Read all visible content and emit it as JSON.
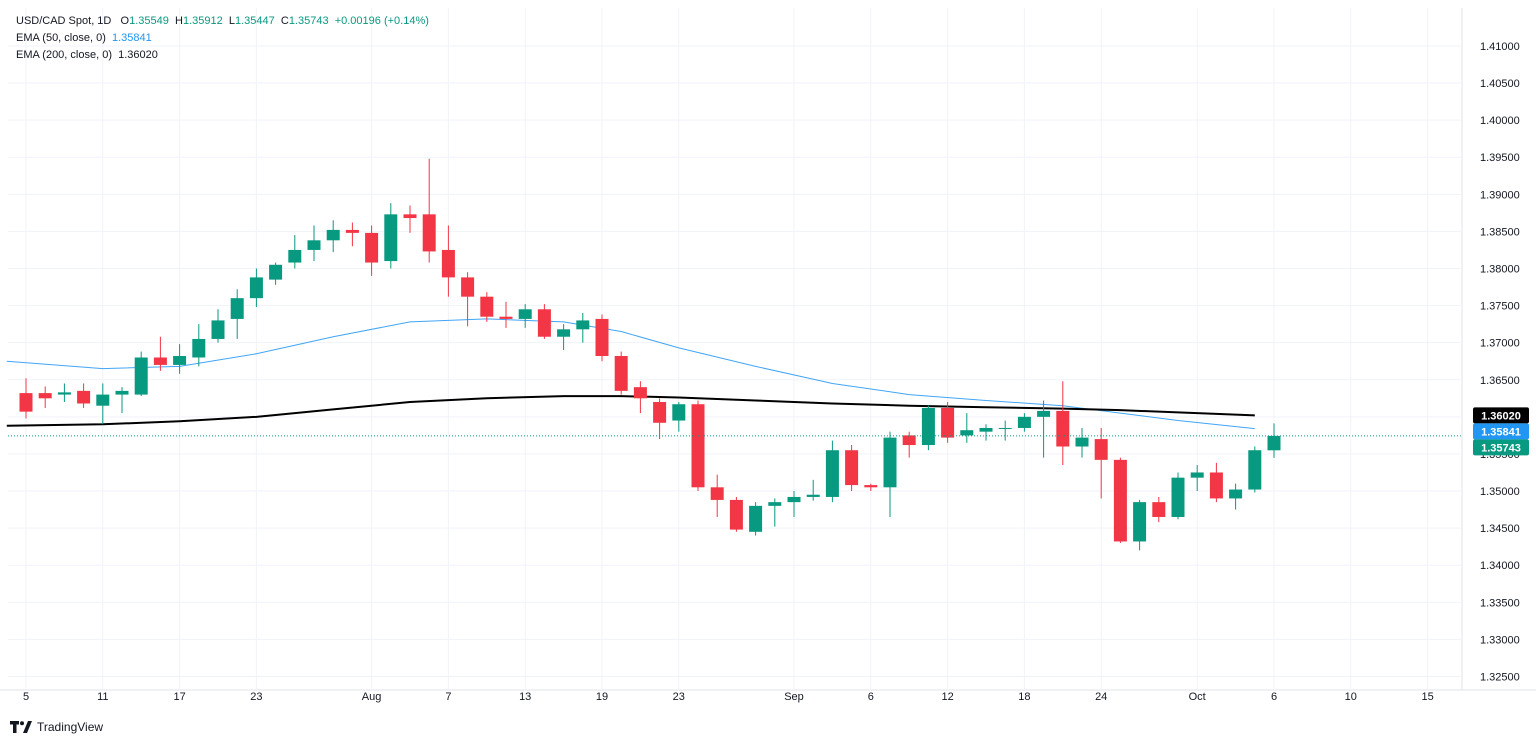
{
  "header": {
    "symbol": "USD/CAD Spot, 1D",
    "open_label": "O",
    "open": "1.35549",
    "high_label": "H",
    "high": "1.35912",
    "low_label": "L",
    "low": "1.35447",
    "close_label": "C",
    "close": "1.35743",
    "change": "+0.00196 (+0.14%)",
    "ema50_label": "EMA (50, close, 0)",
    "ema50_value": "1.35841",
    "ema200_label": "EMA (200, close, 0)",
    "ema200_value": "1.36020"
  },
  "brand": {
    "name": "TradingView"
  },
  "colors": {
    "up": "#089981",
    "down": "#f23645",
    "ema50": "#42a5f5",
    "ema200": "#000000",
    "grid": "#f0f3fa",
    "axis_text": "#131722",
    "close_line": "#089981"
  },
  "chart_data": {
    "type": "candlestick",
    "title": "USD/CAD Spot, 1D",
    "ylim": [
      1.3225,
      1.4135
    ],
    "y_ticks": [
      "1.32500",
      "1.33000",
      "1.33500",
      "1.34000",
      "1.34500",
      "1.35000",
      "1.35500",
      "1.36000",
      "1.36500",
      "1.37000",
      "1.37500",
      "1.38000",
      "1.38500",
      "1.39000",
      "1.39500",
      "1.40000",
      "1.40500",
      "1.41000"
    ],
    "x_ticks": [
      {
        "index": 0,
        "label": "5"
      },
      {
        "index": 4,
        "label": "11"
      },
      {
        "index": 8,
        "label": "17"
      },
      {
        "index": 12,
        "label": "23"
      },
      {
        "index": 18,
        "label": "Aug"
      },
      {
        "index": 22,
        "label": "7"
      },
      {
        "index": 26,
        "label": "13"
      },
      {
        "index": 30,
        "label": "19"
      },
      {
        "index": 34,
        "label": "23"
      },
      {
        "index": 40,
        "label": "Sep"
      },
      {
        "index": 44,
        "label": "6"
      },
      {
        "index": 48,
        "label": "12"
      },
      {
        "index": 52,
        "label": "18"
      },
      {
        "index": 56,
        "label": "24"
      },
      {
        "index": 61,
        "label": "Oct"
      },
      {
        "index": 65,
        "label": "6"
      },
      {
        "index": 69,
        "label": "10"
      },
      {
        "index": 73,
        "label": "15"
      }
    ],
    "candles": [
      {
        "o": 1.3632,
        "h": 1.3652,
        "l": 1.3598,
        "c": 1.3607
      },
      {
        "o": 1.3632,
        "h": 1.3641,
        "l": 1.3612,
        "c": 1.3625
      },
      {
        "o": 1.363,
        "h": 1.3645,
        "l": 1.362,
        "c": 1.3633
      },
      {
        "o": 1.3635,
        "h": 1.3645,
        "l": 1.3612,
        "c": 1.3618
      },
      {
        "o": 1.3615,
        "h": 1.3645,
        "l": 1.359,
        "c": 1.363
      },
      {
        "o": 1.363,
        "h": 1.364,
        "l": 1.3605,
        "c": 1.3635
      },
      {
        "o": 1.363,
        "h": 1.3688,
        "l": 1.3628,
        "c": 1.368
      },
      {
        "o": 1.368,
        "h": 1.3708,
        "l": 1.3662,
        "c": 1.367
      },
      {
        "o": 1.367,
        "h": 1.3698,
        "l": 1.3658,
        "c": 1.3682
      },
      {
        "o": 1.368,
        "h": 1.3725,
        "l": 1.3668,
        "c": 1.3705
      },
      {
        "o": 1.3705,
        "h": 1.3745,
        "l": 1.37,
        "c": 1.373
      },
      {
        "o": 1.3732,
        "h": 1.3772,
        "l": 1.3705,
        "c": 1.376
      },
      {
        "o": 1.376,
        "h": 1.38,
        "l": 1.3748,
        "c": 1.3788
      },
      {
        "o": 1.3785,
        "h": 1.3808,
        "l": 1.3778,
        "c": 1.3805
      },
      {
        "o": 1.3808,
        "h": 1.3845,
        "l": 1.38,
        "c": 1.3825
      },
      {
        "o": 1.3825,
        "h": 1.3858,
        "l": 1.381,
        "c": 1.3838
      },
      {
        "o": 1.3838,
        "h": 1.3865,
        "l": 1.3822,
        "c": 1.3852
      },
      {
        "o": 1.3852,
        "h": 1.3862,
        "l": 1.383,
        "c": 1.3848
      },
      {
        "o": 1.3848,
        "h": 1.3858,
        "l": 1.379,
        "c": 1.3808
      },
      {
        "o": 1.381,
        "h": 1.3888,
        "l": 1.38,
        "c": 1.3873
      },
      {
        "o": 1.3873,
        "h": 1.3885,
        "l": 1.3848,
        "c": 1.3868
      },
      {
        "o": 1.3873,
        "h": 1.3948,
        "l": 1.3808,
        "c": 1.3823
      },
      {
        "o": 1.3825,
        "h": 1.3858,
        "l": 1.3762,
        "c": 1.3788
      },
      {
        "o": 1.3788,
        "h": 1.3795,
        "l": 1.3722,
        "c": 1.3762
      },
      {
        "o": 1.3762,
        "h": 1.3768,
        "l": 1.3728,
        "c": 1.3735
      },
      {
        "o": 1.3735,
        "h": 1.3755,
        "l": 1.372,
        "c": 1.3732
      },
      {
        "o": 1.3732,
        "h": 1.3752,
        "l": 1.372,
        "c": 1.3745
      },
      {
        "o": 1.3745,
        "h": 1.3752,
        "l": 1.3705,
        "c": 1.3708
      },
      {
        "o": 1.3708,
        "h": 1.3725,
        "l": 1.369,
        "c": 1.3718
      },
      {
        "o": 1.3718,
        "h": 1.374,
        "l": 1.37,
        "c": 1.373
      },
      {
        "o": 1.3732,
        "h": 1.3738,
        "l": 1.3675,
        "c": 1.3682
      },
      {
        "o": 1.3682,
        "h": 1.3688,
        "l": 1.363,
        "c": 1.3635
      },
      {
        "o": 1.364,
        "h": 1.3648,
        "l": 1.3605,
        "c": 1.3625
      },
      {
        "o": 1.362,
        "h": 1.3625,
        "l": 1.357,
        "c": 1.3592
      },
      {
        "o": 1.3595,
        "h": 1.362,
        "l": 1.358,
        "c": 1.3617
      },
      {
        "o": 1.3617,
        "h": 1.3622,
        "l": 1.35,
        "c": 1.3505
      },
      {
        "o": 1.3505,
        "h": 1.3522,
        "l": 1.3465,
        "c": 1.3488
      },
      {
        "o": 1.3488,
        "h": 1.3492,
        "l": 1.3445,
        "c": 1.3448
      },
      {
        "o": 1.3445,
        "h": 1.3485,
        "l": 1.344,
        "c": 1.348
      },
      {
        "o": 1.348,
        "h": 1.349,
        "l": 1.3452,
        "c": 1.3485
      },
      {
        "o": 1.3485,
        "h": 1.35,
        "l": 1.3465,
        "c": 1.3492
      },
      {
        "o": 1.3492,
        "h": 1.3515,
        "l": 1.3487,
        "c": 1.3495
      },
      {
        "o": 1.3492,
        "h": 1.3568,
        "l": 1.3485,
        "c": 1.3555
      },
      {
        "o": 1.3555,
        "h": 1.3562,
        "l": 1.35,
        "c": 1.3508
      },
      {
        "o": 1.3508,
        "h": 1.351,
        "l": 1.35,
        "c": 1.3505
      },
      {
        "o": 1.3505,
        "h": 1.358,
        "l": 1.3465,
        "c": 1.3572
      },
      {
        "o": 1.3575,
        "h": 1.358,
        "l": 1.3545,
        "c": 1.3562
      },
      {
        "o": 1.3562,
        "h": 1.3615,
        "l": 1.3555,
        "c": 1.3612
      },
      {
        "o": 1.3612,
        "h": 1.362,
        "l": 1.3565,
        "c": 1.3572
      },
      {
        "o": 1.3575,
        "h": 1.3605,
        "l": 1.3565,
        "c": 1.3582
      },
      {
        "o": 1.358,
        "h": 1.359,
        "l": 1.3568,
        "c": 1.3585
      },
      {
        "o": 1.3585,
        "h": 1.3595,
        "l": 1.3568,
        "c": 1.3585
      },
      {
        "o": 1.3585,
        "h": 1.3605,
        "l": 1.358,
        "c": 1.36
      },
      {
        "o": 1.36,
        "h": 1.3622,
        "l": 1.3545,
        "c": 1.3608
      },
      {
        "o": 1.3608,
        "h": 1.3648,
        "l": 1.3535,
        "c": 1.356
      },
      {
        "o": 1.356,
        "h": 1.3585,
        "l": 1.3545,
        "c": 1.3572
      },
      {
        "o": 1.357,
        "h": 1.3585,
        "l": 1.349,
        "c": 1.3542
      },
      {
        "o": 1.3542,
        "h": 1.3545,
        "l": 1.343,
        "c": 1.3432
      },
      {
        "o": 1.3432,
        "h": 1.3488,
        "l": 1.342,
        "c": 1.3485
      },
      {
        "o": 1.3485,
        "h": 1.3492,
        "l": 1.3458,
        "c": 1.3465
      },
      {
        "o": 1.3465,
        "h": 1.3525,
        "l": 1.3462,
        "c": 1.3518
      },
      {
        "o": 1.3518,
        "h": 1.3535,
        "l": 1.35,
        "c": 1.3525
      },
      {
        "o": 1.3525,
        "h": 1.3538,
        "l": 1.3485,
        "c": 1.349
      },
      {
        "o": 1.349,
        "h": 1.351,
        "l": 1.3475,
        "c": 1.3502
      },
      {
        "o": 1.3502,
        "h": 1.356,
        "l": 1.3498,
        "c": 1.3555
      },
      {
        "o": 1.35549,
        "h": 1.35912,
        "l": 1.35447,
        "c": 1.35743
      }
    ],
    "series": [
      {
        "name": "EMA (50, close, 0)",
        "color": "#42a5f5",
        "x": [
          -1,
          4,
          8,
          12,
          16,
          20,
          24,
          28,
          31,
          34,
          38,
          42,
          46,
          50,
          54,
          57,
          60,
          64
        ],
        "values": [
          1.3675,
          1.3665,
          1.3668,
          1.3685,
          1.3708,
          1.3728,
          1.3732,
          1.3728,
          1.3715,
          1.3693,
          1.3668,
          1.3645,
          1.363,
          1.3622,
          1.3615,
          1.3605,
          1.3595,
          1.35841
        ]
      },
      {
        "name": "EMA (200, close, 0)",
        "color": "#000000",
        "x": [
          -1,
          4,
          8,
          12,
          16,
          20,
          24,
          28,
          31,
          34,
          38,
          42,
          46,
          50,
          54,
          57,
          60,
          64
        ],
        "values": [
          1.3588,
          1.359,
          1.3594,
          1.36,
          1.361,
          1.362,
          1.3625,
          1.3628,
          1.3628,
          1.3626,
          1.3622,
          1.3618,
          1.3615,
          1.3613,
          1.3611,
          1.3609,
          1.3606,
          1.3602
        ]
      }
    ],
    "price_labels": [
      {
        "value": 1.3602,
        "label": "1.36020",
        "bg": "#000000",
        "fg": "#ffffff"
      },
      {
        "value": 1.35841,
        "label": "1.35841",
        "bg": "#2196f3",
        "fg": "#ffffff"
      },
      {
        "value": 1.35743,
        "label": "1.35743",
        "bg": "#089981",
        "fg": "#ffffff"
      }
    ],
    "last_close": 1.35743
  }
}
